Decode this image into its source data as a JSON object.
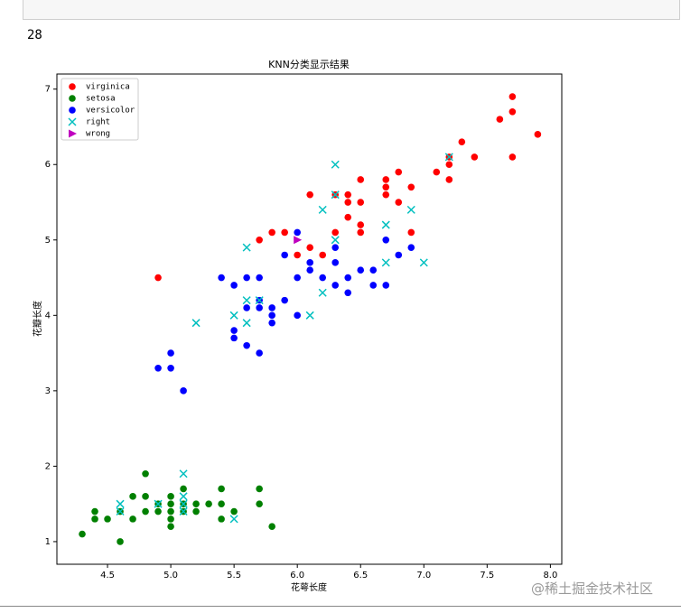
{
  "cell_output": "28",
  "watermark": "@稀土掘金技术社区",
  "chart_data": {
    "type": "scatter",
    "title": "KNN分类显示结果",
    "x_label": "花萼长度",
    "y_label": "花瓣长度",
    "xlim": [
      4.1,
      8.09
    ],
    "ylim": [
      0.7,
      7.2
    ],
    "xticks": [
      4.5,
      {
        "value": 5,
        "label": "5.0"
      },
      5.5,
      {
        "value": 6,
        "label": "6.0"
      },
      6.5,
      {
        "value": 7,
        "label": "7.0"
      },
      7.5,
      {
        "value": 8,
        "label": "8.0"
      }
    ],
    "yticks": [
      1,
      2,
      3,
      4,
      5,
      6,
      7
    ],
    "legend": "upper left",
    "series": [
      {
        "name": "virginica",
        "color": "#ff0000",
        "marker": "o",
        "x": [
          7.7,
          7.7,
          7.6,
          7.9,
          7.3,
          7.2,
          7.4,
          7.7,
          7.2,
          7.1,
          6.8,
          7.2,
          6.5,
          6.7,
          6.9,
          6.7,
          6.1,
          6.4,
          6.3,
          6.7,
          6.4,
          6.5,
          6.8,
          6.4,
          6.5,
          6.3,
          6.5,
          5.8,
          6.9,
          5.7,
          6.0,
          6.1,
          6.2,
          4.9,
          5.9
        ],
        "values": [
          6.9,
          6.7,
          6.6,
          6.4,
          6.3,
          6.1,
          6.1,
          6.1,
          6.0,
          5.9,
          5.9,
          5.8,
          5.8,
          5.8,
          5.7,
          5.7,
          5.6,
          5.6,
          5.6,
          5.6,
          5.5,
          5.5,
          5.5,
          5.3,
          5.2,
          5.1,
          5.1,
          5.1,
          5.1,
          5.0,
          4.8,
          4.9,
          4.8,
          4.5,
          5.1
        ]
      },
      {
        "name": "setosa",
        "color": "#008000",
        "marker": "o",
        "x": [
          4.3,
          4.4,
          4.4,
          4.5,
          4.6,
          4.6,
          4.7,
          4.7,
          4.8,
          4.8,
          4.8,
          4.9,
          4.9,
          5.0,
          5.0,
          5.0,
          5.0,
          5.0,
          5.1,
          5.1,
          5.1,
          5.2,
          5.2,
          5.3,
          5.4,
          5.4,
          5.4,
          5.5,
          5.7,
          5.7,
          5.8
        ],
        "values": [
          1.1,
          1.3,
          1.4,
          1.3,
          1.0,
          1.4,
          1.6,
          1.3,
          1.9,
          1.6,
          1.4,
          1.5,
          1.4,
          1.6,
          1.5,
          1.4,
          1.3,
          1.2,
          1.7,
          1.5,
          1.4,
          1.5,
          1.4,
          1.5,
          1.7,
          1.5,
          1.3,
          1.4,
          1.7,
          1.5,
          1.2
        ]
      },
      {
        "name": "versicolor",
        "color": "#0000ff",
        "marker": "o",
        "x": [
          4.9,
          5.0,
          5.0,
          5.1,
          5.4,
          5.5,
          5.5,
          5.5,
          5.6,
          5.6,
          5.6,
          5.7,
          5.7,
          5.7,
          5.7,
          5.8,
          5.8,
          5.8,
          5.9,
          5.9,
          6.0,
          6.0,
          6.0,
          6.1,
          6.1,
          6.2,
          6.3,
          6.3,
          6.3,
          6.4,
          6.4,
          6.5,
          6.6,
          6.6,
          6.7,
          6.7,
          6.8,
          6.9
        ],
        "values": [
          3.3,
          3.5,
          3.3,
          3.0,
          4.5,
          4.4,
          3.8,
          3.7,
          4.5,
          4.1,
          3.6,
          4.5,
          4.2,
          4.1,
          3.5,
          4.1,
          4.0,
          3.9,
          4.8,
          4.2,
          5.1,
          4.5,
          4.0,
          4.7,
          4.6,
          4.5,
          4.9,
          4.7,
          4.4,
          4.5,
          4.3,
          4.6,
          4.6,
          4.4,
          5.0,
          4.4,
          4.8,
          4.9
        ]
      },
      {
        "name": "right",
        "color": "#00bfbf",
        "marker": "x",
        "x": [
          4.6,
          4.6,
          4.9,
          5.1,
          5.1,
          5.1,
          5.1,
          5.5,
          5.2,
          5.5,
          5.6,
          5.6,
          5.6,
          5.7,
          6.1,
          6.2,
          6.2,
          6.3,
          6.3,
          6.3,
          6.7,
          6.7,
          6.9,
          7.0,
          7.2
        ],
        "values": [
          1.5,
          1.4,
          1.5,
          1.9,
          1.6,
          1.5,
          1.4,
          1.3,
          3.9,
          4.0,
          4.9,
          4.2,
          3.9,
          4.2,
          4.0,
          5.4,
          4.3,
          6.0,
          5.6,
          5.0,
          5.2,
          4.7,
          5.4,
          4.7,
          6.1
        ]
      },
      {
        "name": "wrong",
        "color": "#bf00bf",
        "marker": ">",
        "x": [
          6.0
        ],
        "values": [
          5.0
        ]
      }
    ]
  }
}
